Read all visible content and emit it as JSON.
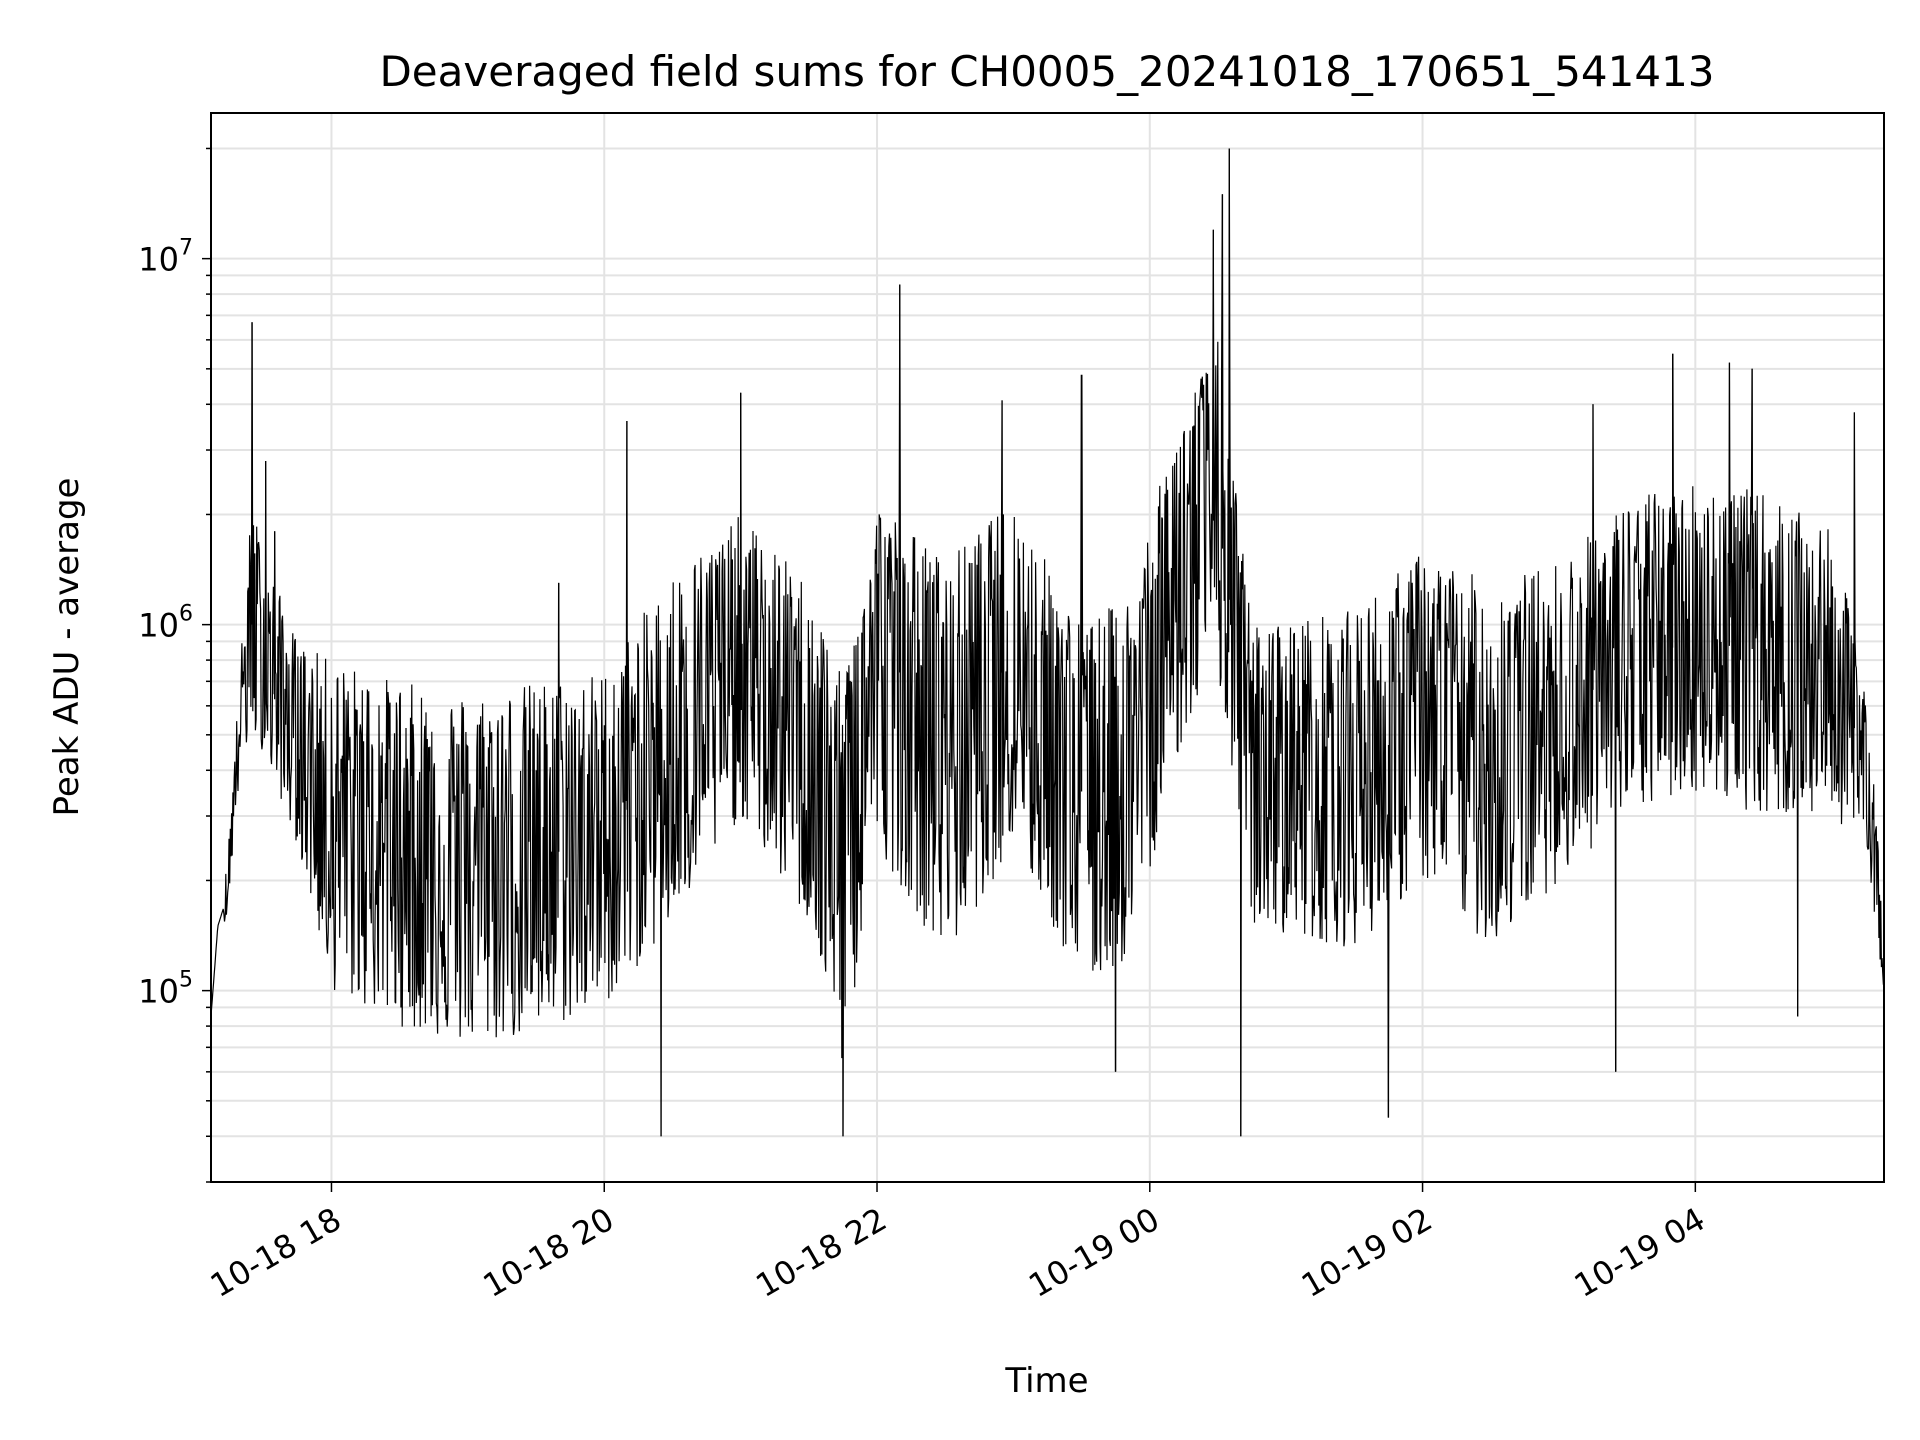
{
  "chart_data": {
    "type": "line",
    "title": "Deaveraged field sums for CH0005_20241018_170651_541413",
    "xlabel": "Time",
    "ylabel": "Peak ADU - average",
    "yscale": "log",
    "ylim": [
      30000,
      25000000
    ],
    "xlim": [
      "2024-10-18 17:07",
      "2024-10-19 05:23"
    ],
    "grid": true,
    "line_color": "#000000",
    "x_ticks": [
      {
        "t": "2024-10-18 18:00",
        "label": "10-18 18"
      },
      {
        "t": "2024-10-18 20:00",
        "label": "10-18 20"
      },
      {
        "t": "2024-10-18 22:00",
        "label": "10-18 22"
      },
      {
        "t": "2024-10-19 00:00",
        "label": "10-19 00"
      },
      {
        "t": "2024-10-19 02:00",
        "label": "10-19 02"
      },
      {
        "t": "2024-10-19 04:00",
        "label": "10-19 04"
      }
    ],
    "y_ticks": [
      {
        "value": 100000,
        "base": "10",
        "exp": "5"
      },
      {
        "value": 1000000,
        "base": "10",
        "exp": "6"
      },
      {
        "value": 10000000,
        "base": "10",
        "exp": "7"
      }
    ],
    "series": [
      {
        "envelope": [
          {
            "t": "2024-10-18 17:07",
            "low": 80000,
            "high": 90000,
            "mid": 85000
          },
          {
            "t": "2024-10-18 17:10",
            "low": 140000,
            "high": 160000,
            "mid": 150000
          },
          {
            "t": "2024-10-18 17:14",
            "low": 160000,
            "high": 220000,
            "mid": 180000
          },
          {
            "t": "2024-10-18 17:20",
            "low": 400000,
            "high": 800000,
            "mid": 600000
          },
          {
            "t": "2024-10-18 17:25",
            "low": 500000,
            "high": 2200000,
            "mid": 1000000
          },
          {
            "t": "2024-10-18 17:30",
            "low": 450000,
            "high": 1600000,
            "mid": 700000
          },
          {
            "t": "2024-10-18 17:45",
            "low": 250000,
            "high": 900000,
            "mid": 500000
          },
          {
            "t": "2024-10-18 18:00",
            "low": 100000,
            "high": 800000,
            "mid": 300000
          },
          {
            "t": "2024-10-18 18:30",
            "low": 80000,
            "high": 700000,
            "mid": 250000
          },
          {
            "t": "2024-10-18 19:00",
            "low": 70000,
            "high": 650000,
            "mid": 220000
          },
          {
            "t": "2024-10-18 19:30",
            "low": 75000,
            "high": 700000,
            "mid": 230000
          },
          {
            "t": "2024-10-18 20:00",
            "low": 90000,
            "high": 750000,
            "mid": 260000
          },
          {
            "t": "2024-10-18 20:30",
            "low": 150000,
            "high": 1400000,
            "mid": 450000
          },
          {
            "t": "2024-10-18 21:00",
            "low": 300000,
            "high": 2000000,
            "mid": 700000
          },
          {
            "t": "2024-10-18 21:30",
            "low": 150000,
            "high": 1300000,
            "mid": 500000
          },
          {
            "t": "2024-10-18 21:45",
            "low": 60000,
            "high": 700000,
            "mid": 250000
          },
          {
            "t": "2024-10-18 22:00",
            "low": 250000,
            "high": 2200000,
            "mid": 900000
          },
          {
            "t": "2024-10-18 22:30",
            "low": 120000,
            "high": 1500000,
            "mid": 500000
          },
          {
            "t": "2024-10-18 23:00",
            "low": 250000,
            "high": 2200000,
            "mid": 800000
          },
          {
            "t": "2024-10-18 23:30",
            "low": 100000,
            "high": 1000000,
            "mid": 350000
          },
          {
            "t": "2024-10-18 23:50",
            "low": 120000,
            "high": 1200000,
            "mid": 400000
          },
          {
            "t": "2024-10-19 00:15",
            "low": 500000,
            "high": 4000000,
            "mid": 1500000
          },
          {
            "t": "2024-10-19 00:30",
            "low": 700000,
            "high": 6000000,
            "mid": 2000000
          },
          {
            "t": "2024-10-19 00:45",
            "low": 150000,
            "high": 1000000,
            "mid": 400000
          },
          {
            "t": "2024-10-19 01:30",
            "low": 130000,
            "high": 1100000,
            "mid": 400000
          },
          {
            "t": "2024-10-19 02:00",
            "low": 200000,
            "high": 1600000,
            "mid": 550000
          },
          {
            "t": "2024-10-19 02:30",
            "low": 130000,
            "high": 1300000,
            "mid": 450000
          },
          {
            "t": "2024-10-19 03:00",
            "low": 200000,
            "high": 1500000,
            "mid": 550000
          },
          {
            "t": "2024-10-19 03:30",
            "low": 300000,
            "high": 2200000,
            "mid": 800000
          },
          {
            "t": "2024-10-19 04:00",
            "low": 350000,
            "high": 2500000,
            "mid": 900000
          },
          {
            "t": "2024-10-19 04:30",
            "low": 300000,
            "high": 2300000,
            "mid": 850000
          },
          {
            "t": "2024-10-19 05:00",
            "low": 300000,
            "high": 1800000,
            "mid": 700000
          },
          {
            "t": "2024-10-19 05:15",
            "low": 250000,
            "high": 700000,
            "mid": 450000
          },
          {
            "t": "2024-10-19 05:23",
            "low": 100000,
            "high": 160000,
            "mid": 120000
          }
        ],
        "spikes": [
          {
            "t": "2024-10-18 17:25",
            "value": 6700000
          },
          {
            "t": "2024-10-18 17:31",
            "value": 2800000
          },
          {
            "t": "2024-10-18 17:35",
            "value": 1800000
          },
          {
            "t": "2024-10-18 19:40",
            "value": 1300000
          },
          {
            "t": "2024-10-18 20:10",
            "value": 3600000
          },
          {
            "t": "2024-10-18 20:25",
            "value": 40000
          },
          {
            "t": "2024-10-18 21:00",
            "value": 4300000
          },
          {
            "t": "2024-10-18 21:45",
            "value": 40000
          },
          {
            "t": "2024-10-18 22:10",
            "value": 8500000
          },
          {
            "t": "2024-10-18 22:55",
            "value": 4100000
          },
          {
            "t": "2024-10-18 23:30",
            "value": 4800000
          },
          {
            "t": "2024-10-18 23:45",
            "value": 60000
          },
          {
            "t": "2024-10-19 00:28",
            "value": 12000000
          },
          {
            "t": "2024-10-19 00:32",
            "value": 15000000
          },
          {
            "t": "2024-10-19 00:35",
            "value": 20000000
          },
          {
            "t": "2024-10-19 00:40",
            "value": 40000
          },
          {
            "t": "2024-10-19 01:45",
            "value": 45000
          },
          {
            "t": "2024-10-19 03:15",
            "value": 4000000
          },
          {
            "t": "2024-10-19 03:25",
            "value": 60000
          },
          {
            "t": "2024-10-19 03:50",
            "value": 5500000
          },
          {
            "t": "2024-10-19 04:15",
            "value": 5200000
          },
          {
            "t": "2024-10-19 04:25",
            "value": 5000000
          },
          {
            "t": "2024-10-19 04:45",
            "value": 85000
          },
          {
            "t": "2024-10-19 05:10",
            "value": 3800000
          }
        ]
      }
    ]
  }
}
